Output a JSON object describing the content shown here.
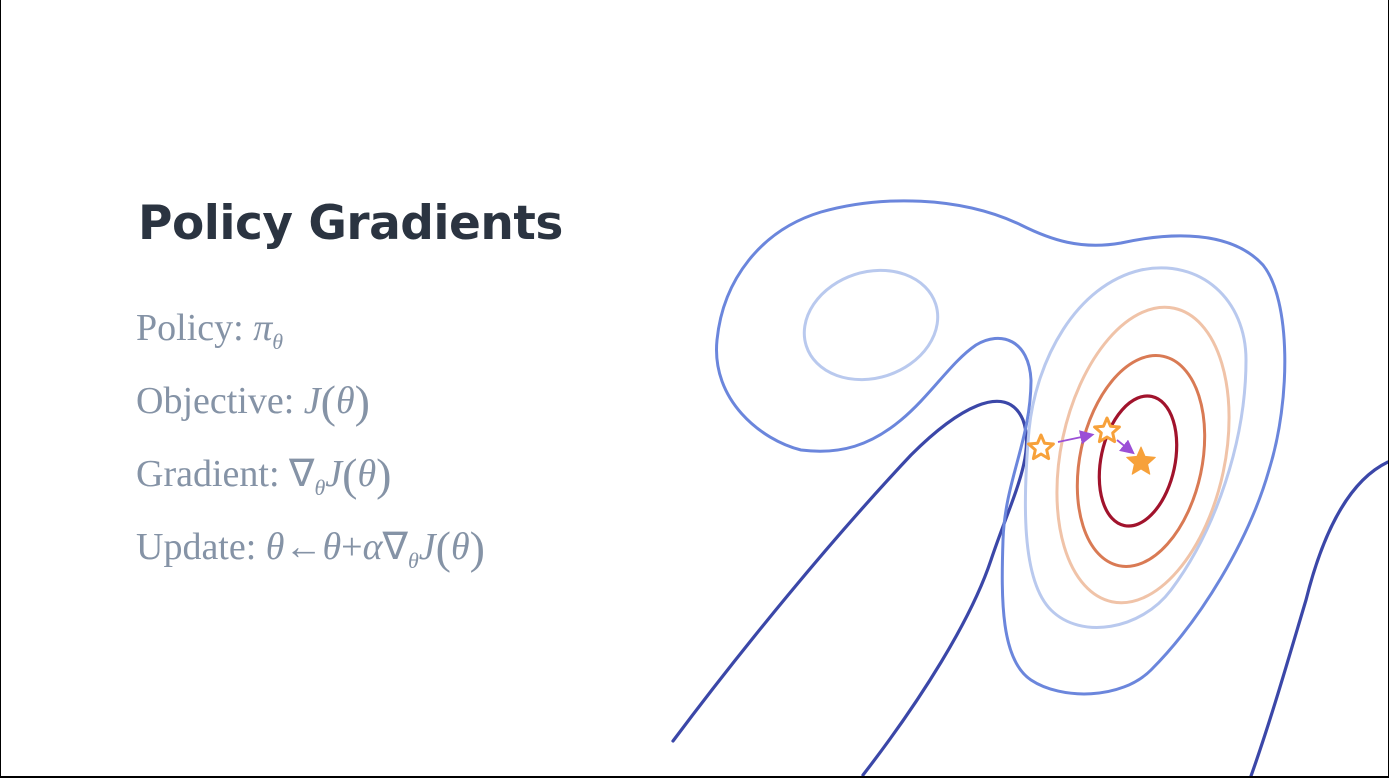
{
  "slide": {
    "title": "Policy Gradients",
    "rows": {
      "policy": {
        "label": "Policy:",
        "symbol": "π",
        "subscript": "θ"
      },
      "objective": {
        "label": "Objective:",
        "func": "J",
        "arg": "θ"
      },
      "gradient": {
        "label": "Gradient:",
        "nabla": "∇",
        "subscript": "θ",
        "func": "J",
        "arg": "θ"
      },
      "update": {
        "label": "Update:",
        "lhs": "θ",
        "arrow": "←",
        "theta": "θ",
        "plus": "+",
        "alpha": "α",
        "nabla": "∇",
        "subscript": "θ",
        "func": "J",
        "arg": "θ"
      }
    }
  },
  "colors": {
    "title": "#2b3441",
    "equation_text": "#8593a6",
    "contour_outer_dark": "#3b47a8",
    "contour_blue": "#6b86dc",
    "contour_light_blue": "#b9c9ee",
    "contour_peach": "#f0c3a8",
    "contour_orange": "#d97a54",
    "contour_red": "#a1132c",
    "star": "#f7a13a",
    "step_arrow": "#9b4fd6"
  },
  "icons": {
    "start_marker": "hollow-star-icon",
    "step_marker": "hollow-star-icon",
    "optimum_marker": "filled-star-icon",
    "steps": "arrow-icon"
  }
}
